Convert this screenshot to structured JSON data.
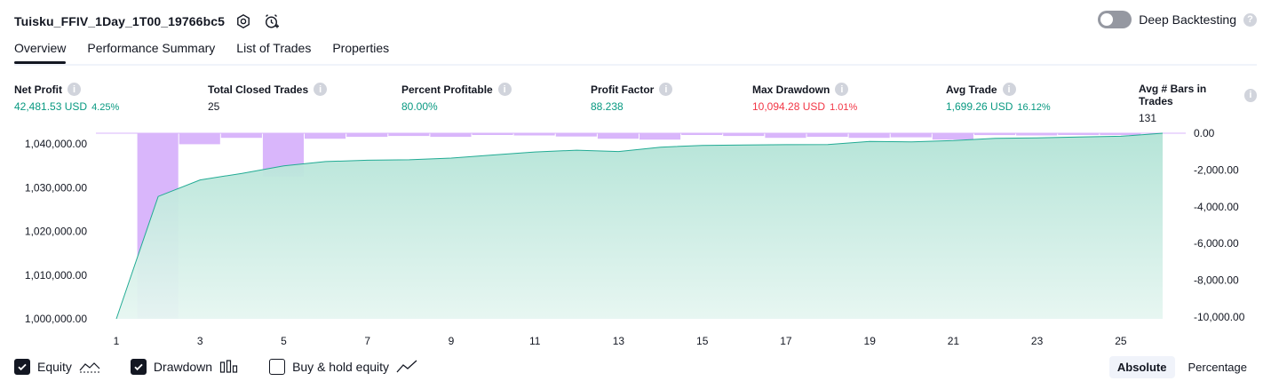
{
  "header": {
    "title": "Tuisku_FFIV_1Day_1T00_19766bc5",
    "settings_icon": "gear-icon",
    "alert_icon": "alarm-clock-add-icon"
  },
  "deep_backtesting": {
    "label": "Deep Backtesting",
    "enabled": false,
    "help": "?"
  },
  "tabs": [
    {
      "label": "Overview",
      "active": true
    },
    {
      "label": "Performance Summary",
      "active": false
    },
    {
      "label": "List of Trades",
      "active": false
    },
    {
      "label": "Properties",
      "active": false
    }
  ],
  "metrics": [
    {
      "label": "Net Profit",
      "value": "42,481.53 USD",
      "sub": "4.25%",
      "color": "#089981"
    },
    {
      "label": "Total Closed Trades",
      "value": "25",
      "sub": "",
      "color": "#131722"
    },
    {
      "label": "Percent Profitable",
      "value": "80.00%",
      "sub": "",
      "color": "#089981"
    },
    {
      "label": "Profit Factor",
      "value": "88.238",
      "sub": "",
      "color": "#089981"
    },
    {
      "label": "Max Drawdown",
      "value": "10,094.28 USD",
      "sub": "1.01%",
      "color": "#f23645"
    },
    {
      "label": "Avg Trade",
      "value": "1,699.26 USD",
      "sub": "16.12%",
      "color": "#089981"
    },
    {
      "label": "Avg # Bars in Trades",
      "value": "131",
      "sub": "",
      "color": "#131722"
    }
  ],
  "chart_data": {
    "type": "area",
    "x": [
      1,
      2,
      3,
      4,
      5,
      6,
      7,
      8,
      9,
      10,
      11,
      12,
      13,
      14,
      15,
      16,
      17,
      18,
      19,
      20,
      21,
      22,
      23,
      24,
      25,
      26
    ],
    "x_ticks": [
      "1",
      "3",
      "5",
      "7",
      "9",
      "11",
      "13",
      "15",
      "17",
      "19",
      "21",
      "23",
      "25"
    ],
    "equity": [
      1000000,
      1028000,
      1031800,
      1033300,
      1035000,
      1036000,
      1036300,
      1036400,
      1036800,
      1037500,
      1038200,
      1038600,
      1038300,
      1039300,
      1039700,
      1039800,
      1039850,
      1039900,
      1040600,
      1040500,
      1040800,
      1041300,
      1041400,
      1041600,
      1041800,
      1042481.53
    ],
    "drawdown": [
      0,
      -10094.28,
      -600,
      -250,
      -2350,
      -300,
      -200,
      -150,
      -200,
      -50,
      -120,
      -180,
      -300,
      -350,
      -80,
      -150,
      -250,
      -200,
      -250,
      -220,
      -350,
      -100,
      -120,
      -80,
      -50,
      0
    ],
    "left_axis": {
      "ticks": [
        "1,040,000.00",
        "1,030,000.00",
        "1,020,000.00",
        "1,010,000.00",
        "1,000,000.00"
      ],
      "tick_values": [
        1040000,
        1030000,
        1020000,
        1010000,
        1000000
      ],
      "ylim": [
        1000000,
        1042481.53
      ]
    },
    "right_axis": {
      "ticks": [
        "0.00",
        "-2,000.00",
        "-4,000.00",
        "-6,000.00",
        "-8,000.00",
        "-10,000.00"
      ],
      "tick_values": [
        0,
        -2000,
        -4000,
        -6000,
        -8000,
        -10000
      ],
      "ylim": [
        -10094.28,
        0
      ]
    },
    "colors": {
      "equity_line": "#22ab94",
      "equity_fill": "#b2e3d6",
      "drawdown_fill": "#d9b6fb"
    },
    "grid": false
  },
  "legend": [
    {
      "label": "Equity",
      "checked": true,
      "icon": "equity-line-icon"
    },
    {
      "label": "Drawdown",
      "checked": true,
      "icon": "drawdown-bars-icon"
    },
    {
      "label": "Buy & hold equity",
      "checked": false,
      "icon": "buy-hold-line-icon"
    }
  ],
  "mode": {
    "options": [
      "Absolute",
      "Percentage"
    ],
    "selected": "Absolute"
  }
}
